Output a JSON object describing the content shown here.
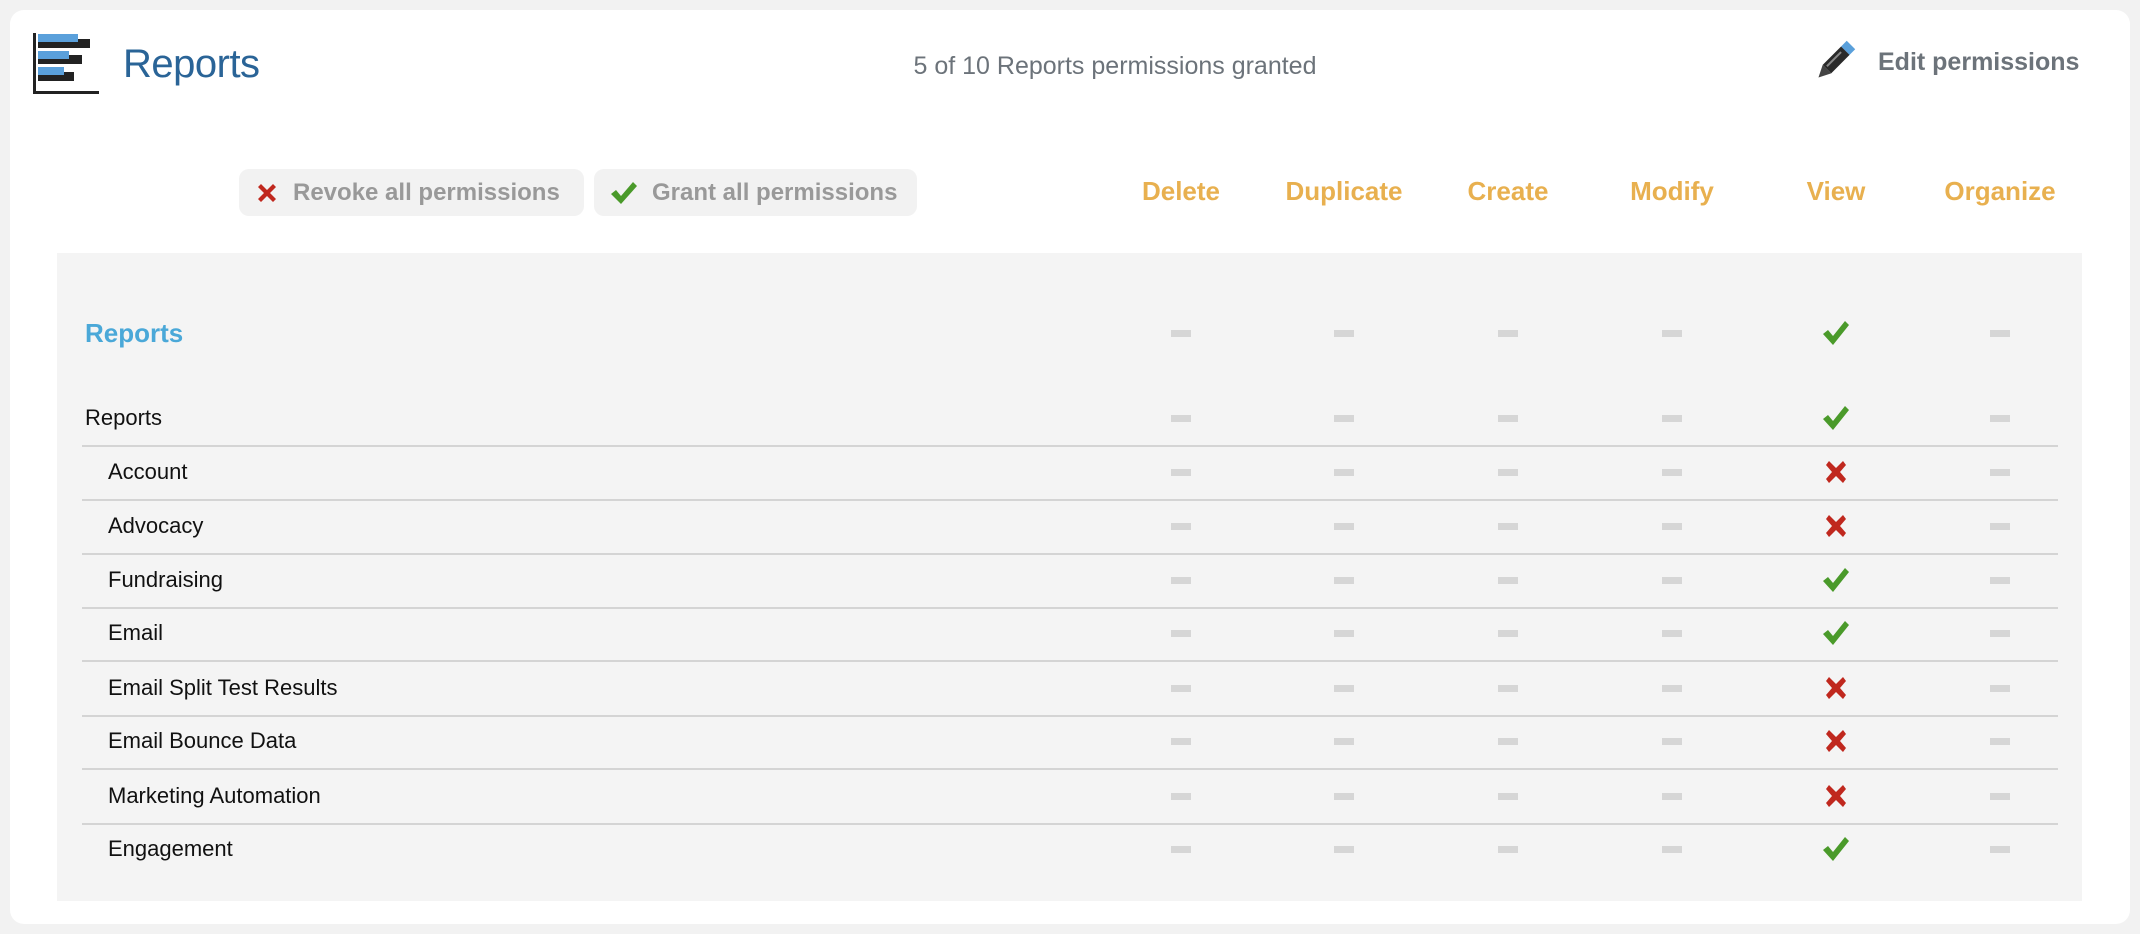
{
  "header": {
    "title": "Reports",
    "summary": "5 of 10 Reports permissions granted",
    "edit_label": "Edit permissions",
    "icon": "bar-chart-icon"
  },
  "toolbar": {
    "revoke_label": "Revoke all permissions",
    "grant_label": "Grant all permissions"
  },
  "columns": [
    "Delete",
    "Duplicate",
    "Create",
    "Modify",
    "View",
    "Organize"
  ],
  "colors": {
    "accent": "#2a6497",
    "column_header": "#e8b04f",
    "section": "#4aa8d8",
    "granted": "#4a9a2a",
    "revoked": "#c0281e",
    "na": "#d6d6d6"
  },
  "section": {
    "label": "Reports",
    "values": [
      "na",
      "na",
      "na",
      "na",
      "granted",
      "na"
    ]
  },
  "rows": [
    {
      "label": "Reports",
      "indent": false,
      "values": [
        "na",
        "na",
        "na",
        "na",
        "granted",
        "na"
      ]
    },
    {
      "label": "Account",
      "indent": true,
      "values": [
        "na",
        "na",
        "na",
        "na",
        "revoked",
        "na"
      ]
    },
    {
      "label": "Advocacy",
      "indent": true,
      "values": [
        "na",
        "na",
        "na",
        "na",
        "revoked",
        "na"
      ]
    },
    {
      "label": "Fundraising",
      "indent": true,
      "values": [
        "na",
        "na",
        "na",
        "na",
        "granted",
        "na"
      ]
    },
    {
      "label": "Email",
      "indent": true,
      "values": [
        "na",
        "na",
        "na",
        "na",
        "granted",
        "na"
      ]
    },
    {
      "label": "Email Split Test Results",
      "indent": true,
      "values": [
        "na",
        "na",
        "na",
        "na",
        "revoked",
        "na"
      ]
    },
    {
      "label": "Email Bounce Data",
      "indent": true,
      "values": [
        "na",
        "na",
        "na",
        "na",
        "revoked",
        "na"
      ]
    },
    {
      "label": "Marketing Automation",
      "indent": true,
      "values": [
        "na",
        "na",
        "na",
        "na",
        "revoked",
        "na"
      ]
    },
    {
      "label": "Engagement",
      "indent": true,
      "values": [
        "na",
        "na",
        "na",
        "na",
        "granted",
        "na"
      ]
    }
  ]
}
